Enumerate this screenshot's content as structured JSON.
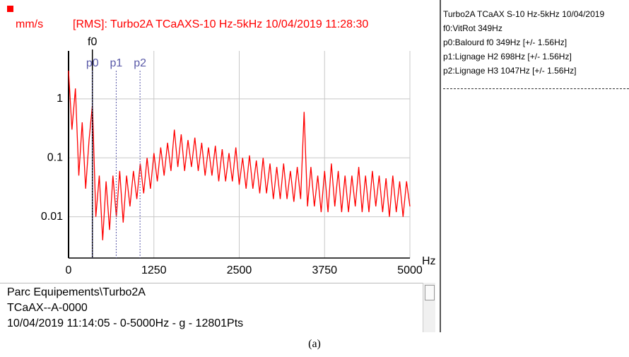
{
  "chart_data": {
    "type": "line",
    "title": "[RMS]: Turbo2A TCaAXS-10 Hz-5kHz 10/04/2019 11:28:30",
    "y_label": "mm/s",
    "x_label": "Hz",
    "color": "#ff0000",
    "log_y": true,
    "grid": true,
    "xlim": [
      0,
      5000
    ],
    "xticks": [
      0,
      1250,
      2500,
      3750,
      5000
    ],
    "ylim": [
      0.002,
      6.5
    ],
    "yticks": [
      0.01,
      0.1,
      1
    ],
    "markers": [
      {
        "label": "f0",
        "x": 349,
        "color": "#000000"
      },
      {
        "label": "p0",
        "x": 349,
        "color": "#5a5aa8"
      },
      {
        "label": "p1",
        "x": 698,
        "color": "#5a5aa8"
      },
      {
        "label": "p2",
        "x": 1047,
        "color": "#5a5aa8"
      }
    ],
    "x": [
      0,
      50,
      100,
      150,
      200,
      250,
      300,
      350,
      400,
      450,
      500,
      550,
      600,
      650,
      700,
      750,
      800,
      850,
      900,
      950,
      1000,
      1050,
      1100,
      1150,
      1200,
      1250,
      1300,
      1350,
      1400,
      1450,
      1500,
      1550,
      1600,
      1650,
      1700,
      1750,
      1800,
      1850,
      1900,
      1950,
      2000,
      2050,
      2100,
      2150,
      2200,
      2250,
      2300,
      2350,
      2400,
      2450,
      2500,
      2550,
      2600,
      2650,
      2700,
      2750,
      2800,
      2850,
      2900,
      2950,
      3000,
      3050,
      3100,
      3150,
      3200,
      3250,
      3300,
      3350,
      3400,
      3450,
      3500,
      3550,
      3600,
      3650,
      3700,
      3750,
      3800,
      3850,
      3900,
      3950,
      4000,
      4050,
      4100,
      4150,
      4200,
      4250,
      4300,
      4350,
      4400,
      4450,
      4500,
      4550,
      4600,
      4650,
      4700,
      4750,
      4800,
      4850,
      4900,
      4950,
      5000
    ],
    "values": [
      3.0,
      0.3,
      1.5,
      0.05,
      0.4,
      0.03,
      0.2,
      0.8,
      0.01,
      0.05,
      0.004,
      0.04,
      0.006,
      0.05,
      0.01,
      0.06,
      0.008,
      0.05,
      0.015,
      0.06,
      0.02,
      0.08,
      0.025,
      0.1,
      0.03,
      0.12,
      0.04,
      0.15,
      0.05,
      0.18,
      0.06,
      0.3,
      0.07,
      0.25,
      0.06,
      0.2,
      0.07,
      0.22,
      0.06,
      0.18,
      0.05,
      0.15,
      0.05,
      0.16,
      0.04,
      0.14,
      0.04,
      0.12,
      0.04,
      0.15,
      0.035,
      0.1,
      0.03,
      0.11,
      0.03,
      0.09,
      0.025,
      0.1,
      0.025,
      0.08,
      0.02,
      0.07,
      0.02,
      0.08,
      0.02,
      0.06,
      0.018,
      0.07,
      0.02,
      0.6,
      0.015,
      0.07,
      0.015,
      0.05,
      0.012,
      0.06,
      0.012,
      0.08,
      0.015,
      0.06,
      0.012,
      0.05,
      0.012,
      0.05,
      0.015,
      0.07,
      0.012,
      0.05,
      0.012,
      0.06,
      0.015,
      0.05,
      0.012,
      0.045,
      0.01,
      0.05,
      0.012,
      0.04,
      0.01,
      0.04,
      0.015
    ]
  },
  "side_panel": {
    "lines": [
      "Turbo2A TCaAX S-10 Hz-5kHz 10/04/2019",
      "f0:VitRot 349Hz",
      "p0:Balourd f0 349Hz [+/- 1.56Hz]",
      "p1:Lignage H2 698Hz [+/- 1.56Hz]",
      "p2:Lignage H3 1047Hz [+/- 1.56Hz]"
    ]
  },
  "info_panel": {
    "lines": [
      "Parc Equipements\\Turbo2A",
      "TCaAX--A-0000",
      "10/04/2019 11:14:05 - 0-5000Hz - g - 12801Pts"
    ]
  },
  "caption": "(a)"
}
